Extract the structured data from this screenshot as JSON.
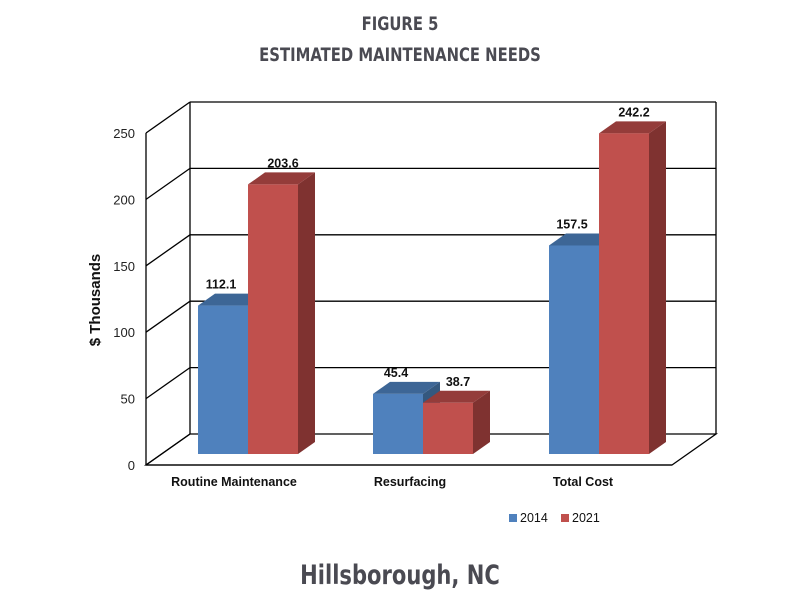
{
  "figure": {
    "title": "FIGURE 5",
    "subtitle": "ESTIMATED MAINTENANCE NEEDS",
    "caption": "Hillsborough, NC"
  },
  "colors": {
    "series_2014": "#4f81bd",
    "series_2014_top": "#3d6696",
    "series_2021": "#c0504d",
    "series_2021_top": "#943c3a",
    "series_2021_side": "#7f3230",
    "grid": "#000000"
  },
  "chart_data": {
    "type": "bar",
    "title": "ESTIMATED MAINTENANCE NEEDS",
    "subtitle": "FIGURE 5",
    "caption": "Hillsborough, NC",
    "categories": [
      "Routine Maintenance",
      "Resurfacing",
      "Total Cost"
    ],
    "series": [
      {
        "name": "2014",
        "values": [
          112.1,
          45.4,
          157.5
        ],
        "labels": [
          "112.1",
          "45.4",
          "157.5"
        ]
      },
      {
        "name": "2021",
        "values": [
          203.6,
          38.7,
          242.2
        ],
        "labels": [
          "203.6",
          "38.7",
          "242.2"
        ]
      }
    ],
    "xlabel": "",
    "ylabel": "$ Thousands",
    "ylim": [
      0,
      250
    ],
    "yticks": [
      "0",
      "50",
      "100",
      "150",
      "200",
      "250"
    ],
    "grid": true,
    "legend_position": "bottom-right",
    "style": "3d-clustered-column"
  }
}
